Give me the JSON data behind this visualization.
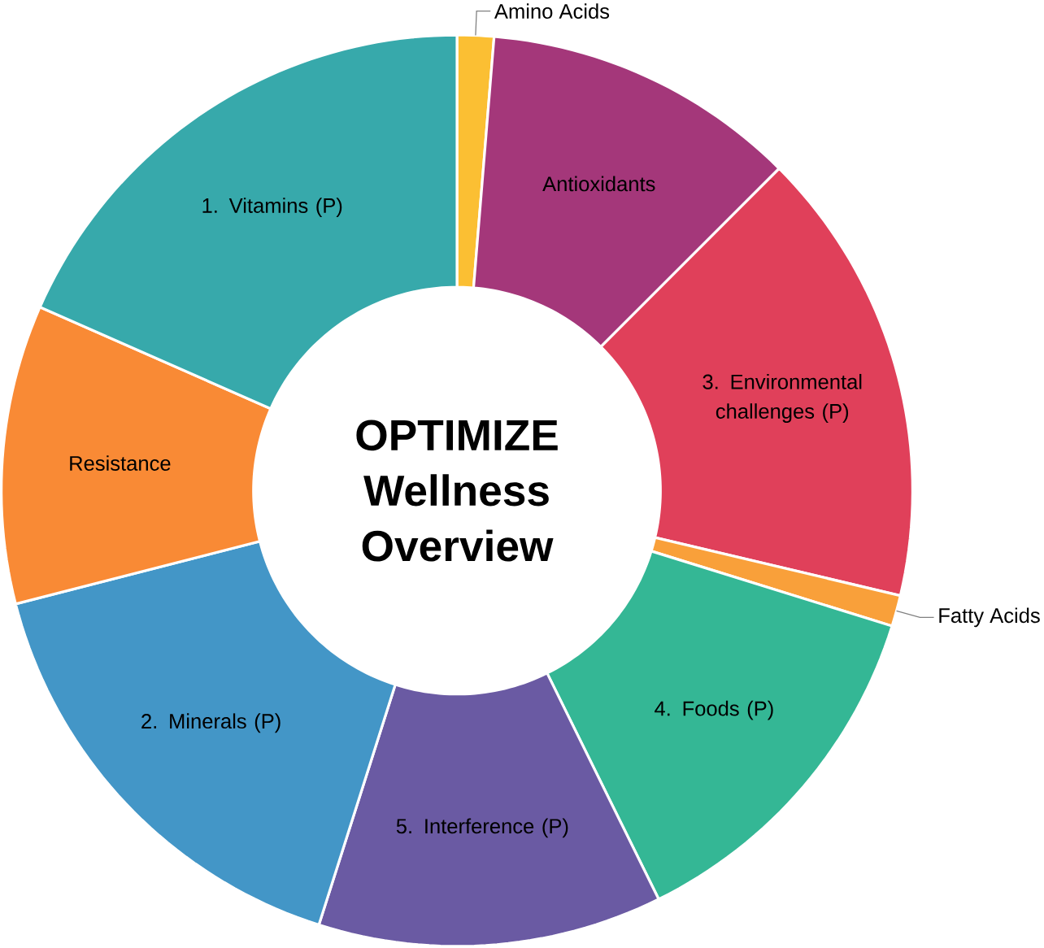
{
  "chart_data": {
    "type": "donut",
    "title": "OPTIMIZE Wellness Overview",
    "categories": [
      "Amino Acids",
      "Antioxidants",
      "3. Environmental challenges (P)",
      "Fatty Acids",
      "4. Foods (P)",
      "5. Interference (P)",
      "2. Minerals (P)",
      "Resistance",
      "1. Vitamins (P)"
    ],
    "values": [
      1.3,
      11.2,
      16.2,
      1.1,
      12.9,
      12.2,
      16.1,
      10.6,
      18.4
    ],
    "colors": [
      "#fbbf33",
      "#a4377a",
      "#e0405a",
      "#f9a03a",
      "#34b795",
      "#6a5aa3",
      "#4396c7",
      "#f98a35",
      "#37a9ab"
    ]
  }
}
